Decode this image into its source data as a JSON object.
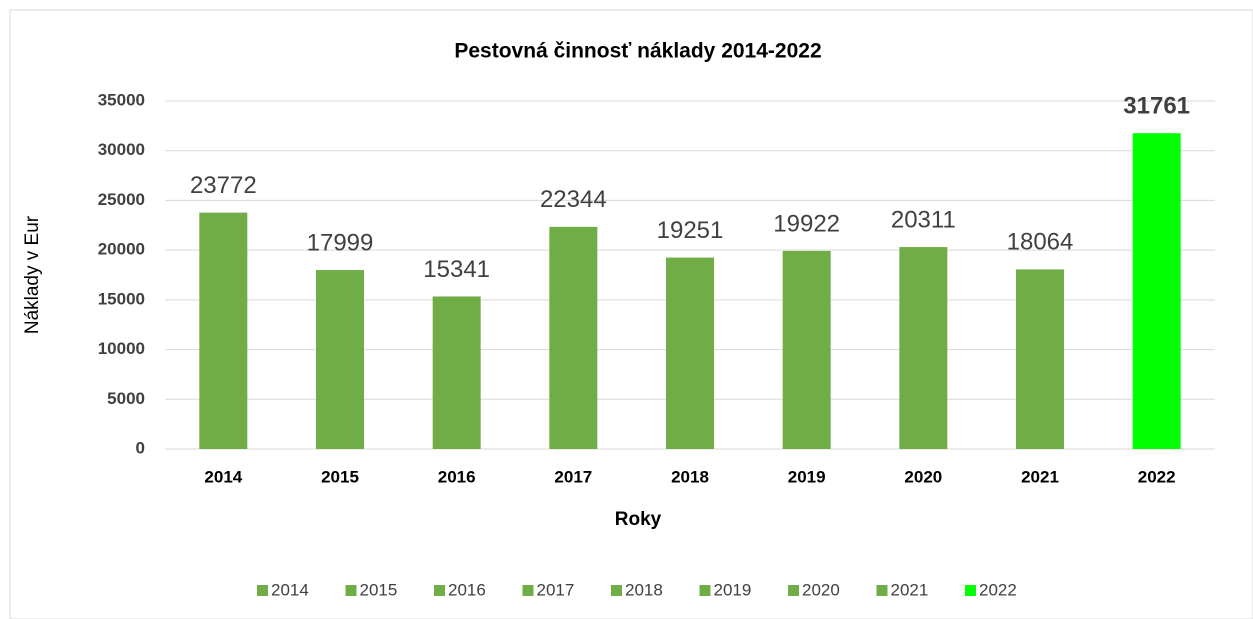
{
  "chart_data": {
    "type": "bar",
    "title": "Pestovná činnosť náklady 2014-2022",
    "x_label": "Roky",
    "y_label": "Náklady v Eur",
    "categories": [
      "2014",
      "2015",
      "2016",
      "2017",
      "2018",
      "2019",
      "2020",
      "2021",
      "2022"
    ],
    "values": [
      23772,
      17999,
      15341,
      22344,
      19251,
      19922,
      20311,
      18064,
      31761
    ],
    "colors": [
      "#70ad47",
      "#70ad47",
      "#70ad47",
      "#70ad47",
      "#70ad47",
      "#70ad47",
      "#70ad47",
      "#70ad47",
      "#00ff00"
    ],
    "bold_value_labels": [
      8
    ],
    "ylim": [
      0,
      35000
    ],
    "yticks": [
      0,
      5000,
      10000,
      15000,
      20000,
      25000,
      30000,
      35000
    ],
    "grid": true,
    "legend": "bottom"
  }
}
